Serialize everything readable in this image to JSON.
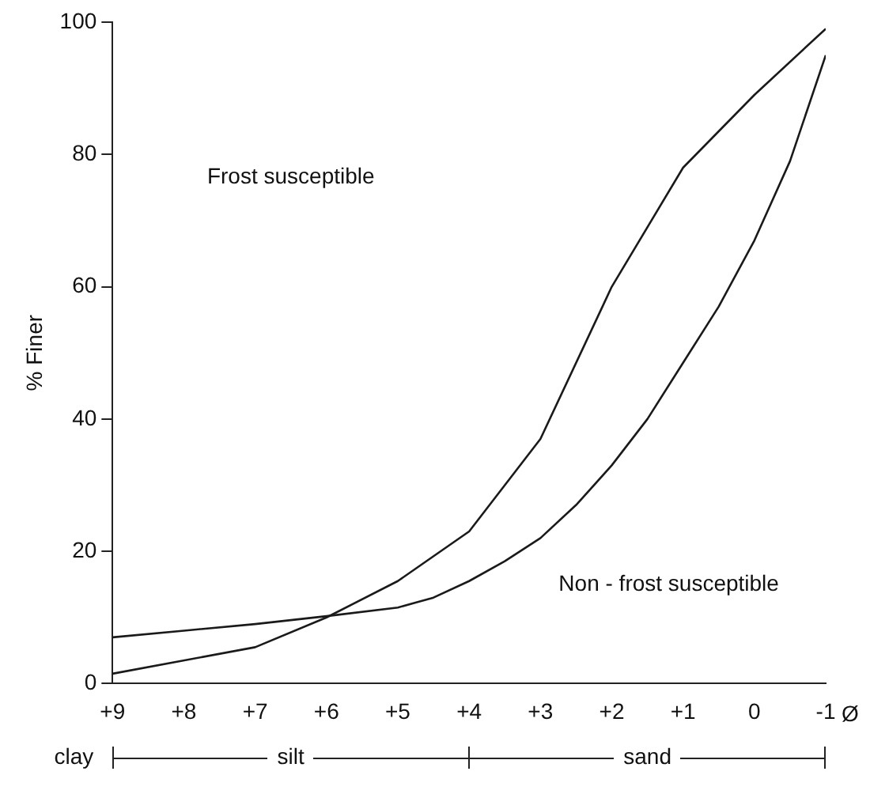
{
  "chart_data": {
    "type": "line",
    "xlabel": "Ø",
    "ylabel": "% Finer",
    "series": [
      {
        "color": "#1a1a1a",
        "x": [
          9,
          7,
          6,
          5,
          4,
          3,
          2,
          1,
          0,
          -1
        ],
        "values": [
          1.5,
          5.5,
          10,
          15.5,
          23,
          37,
          60,
          78,
          89,
          99
        ]
      },
      {
        "color": "#1a1a1a",
        "x": [
          9,
          8,
          7,
          6,
          5,
          4.5,
          4,
          3.5,
          3,
          2.5,
          2,
          1.5,
          1,
          0.5,
          0,
          -0.5,
          -1
        ],
        "values": [
          7,
          8,
          9,
          10.2,
          11.5,
          13,
          15.5,
          18.5,
          22,
          27,
          33,
          40,
          48.5,
          57,
          67,
          79,
          95
        ]
      }
    ],
    "xlim": [
      9,
      -1
    ],
    "xticks": [
      {
        "value": 9,
        "label": "+9"
      },
      {
        "value": 8,
        "label": "+8"
      },
      {
        "value": 7,
        "label": "+7"
      },
      {
        "value": 6,
        "label": "+6"
      },
      {
        "value": 5,
        "label": "+5"
      },
      {
        "value": 4,
        "label": "+4"
      },
      {
        "value": 3,
        "label": "+3"
      },
      {
        "value": 2,
        "label": "+2"
      },
      {
        "value": 1,
        "label": "+1"
      },
      0,
      -1
    ],
    "ylim": [
      0,
      100
    ],
    "yticks": [
      0,
      20,
      40,
      60,
      80,
      100
    ],
    "annotations": [
      "Frost susceptible",
      "Non - frost susceptible",
      "clay",
      "silt",
      "sand"
    ],
    "grid": false,
    "legend": false,
    "marker": "none",
    "line_style": "solid"
  }
}
